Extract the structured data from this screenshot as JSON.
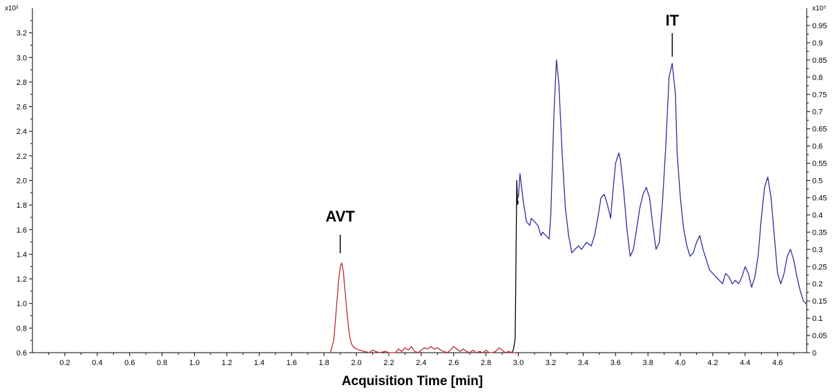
{
  "chart_data": {
    "type": "line",
    "title": "",
    "xlabel": "Acquisition Time [min]",
    "xlim": [
      0,
      4.78
    ],
    "x_ticks": [
      "0.2",
      "0.4",
      "0.6",
      "0.8",
      "1.0",
      "1.2",
      "1.4",
      "1.6",
      "1.8",
      "2.0",
      "2.2",
      "2.4",
      "2.6",
      "2.8",
      "3.0",
      "3.2",
      "3.4",
      "3.6",
      "3.8",
      "4.0",
      "4.2",
      "4.4",
      "4.6"
    ],
    "y_left": {
      "multiplier_label": "x10²",
      "ylim": [
        0.6,
        3.4
      ],
      "ticks": [
        "0.6",
        "0.8",
        "1.0",
        "1.2",
        "1.4",
        "1.6",
        "1.8",
        "2.0",
        "2.2",
        "2.4",
        "2.6",
        "2.8",
        "3.0",
        "3.2"
      ]
    },
    "y_right": {
      "multiplier_label": "x10⁵",
      "ylim": [
        0,
        1.0
      ],
      "ticks": [
        "0",
        "0.05",
        "0.1",
        "0.15",
        "0.2",
        "0.25",
        "0.3",
        "0.35",
        "0.4",
        "0.45",
        "0.5",
        "0.55",
        "0.6",
        "0.65",
        "0.7",
        "0.75",
        "0.8",
        "0.85",
        "0.9",
        "0.95"
      ]
    },
    "annotations": [
      {
        "text": "AVT",
        "x": 1.9
      },
      {
        "text": "IT",
        "x": 3.95
      }
    ],
    "series": [
      {
        "color": "#c0272d",
        "axis": "left",
        "x": [
          1.84,
          1.86,
          1.87,
          1.88,
          1.89,
          1.9,
          1.91,
          1.92,
          1.93,
          1.94,
          1.95,
          1.96,
          1.97,
          1.98,
          2.0,
          2.02,
          2.05,
          2.08,
          2.1,
          2.14,
          2.18,
          2.2,
          2.24,
          2.26,
          2.28,
          2.3,
          2.32,
          2.34,
          2.36,
          2.38,
          2.4,
          2.42,
          2.44,
          2.46,
          2.48,
          2.5,
          2.52,
          2.54,
          2.56,
          2.58,
          2.6,
          2.62,
          2.64,
          2.66,
          2.68,
          2.7,
          2.72,
          2.74,
          2.76,
          2.78,
          2.8,
          2.82,
          2.84,
          2.86,
          2.88,
          2.9,
          2.92,
          2.94,
          2.96,
          2.98
        ],
        "values": [
          0.6,
          0.7,
          0.86,
          1.02,
          1.18,
          1.3,
          1.33,
          1.25,
          1.1,
          0.95,
          0.82,
          0.72,
          0.67,
          0.65,
          0.63,
          0.62,
          0.61,
          0.6,
          0.62,
          0.6,
          0.61,
          0.6,
          0.6,
          0.63,
          0.61,
          0.64,
          0.62,
          0.65,
          0.61,
          0.6,
          0.62,
          0.64,
          0.63,
          0.65,
          0.63,
          0.64,
          0.62,
          0.61,
          0.6,
          0.62,
          0.65,
          0.63,
          0.61,
          0.63,
          0.61,
          0.6,
          0.62,
          0.6,
          0.61,
          0.6,
          0.62,
          0.6,
          0.6,
          0.61,
          0.64,
          0.62,
          0.6,
          0.61,
          0.6,
          0.6
        ]
      },
      {
        "color": "#000000",
        "axis": "right",
        "x": [
          2.96,
          2.97,
          2.98,
          2.985,
          2.99,
          2.995,
          3.0
        ],
        "values": [
          0.0,
          0.01,
          0.04,
          0.25,
          0.5,
          0.43,
          0.44
        ]
      },
      {
        "color": "#2c2c9e",
        "axis": "right",
        "x": [
          3.0,
          3.01,
          3.02,
          3.03,
          3.05,
          3.07,
          3.08,
          3.1,
          3.12,
          3.14,
          3.15,
          3.17,
          3.19,
          3.2,
          3.22,
          3.235,
          3.25,
          3.27,
          3.29,
          3.31,
          3.33,
          3.35,
          3.37,
          3.39,
          3.42,
          3.45,
          3.47,
          3.49,
          3.51,
          3.53,
          3.55,
          3.57,
          3.58,
          3.6,
          3.62,
          3.63,
          3.65,
          3.67,
          3.69,
          3.71,
          3.73,
          3.75,
          3.77,
          3.79,
          3.81,
          3.83,
          3.85,
          3.87,
          3.89,
          3.91,
          3.93,
          3.95,
          3.97,
          3.98,
          4.0,
          4.02,
          4.04,
          4.06,
          4.08,
          4.1,
          4.12,
          4.14,
          4.16,
          4.18,
          4.2,
          4.22,
          4.24,
          4.26,
          4.28,
          4.3,
          4.32,
          4.34,
          4.36,
          4.38,
          4.4,
          4.42,
          4.44,
          4.46,
          4.48,
          4.5,
          4.52,
          4.54,
          4.56,
          4.58,
          4.6,
          4.62,
          4.64,
          4.66,
          4.68,
          4.7,
          4.72,
          4.74,
          4.76,
          4.78
        ],
        "values": [
          0.45,
          0.52,
          0.48,
          0.44,
          0.38,
          0.37,
          0.39,
          0.38,
          0.37,
          0.34,
          0.35,
          0.34,
          0.33,
          0.4,
          0.7,
          0.85,
          0.78,
          0.58,
          0.42,
          0.34,
          0.29,
          0.3,
          0.31,
          0.3,
          0.32,
          0.31,
          0.34,
          0.39,
          0.45,
          0.46,
          0.43,
          0.39,
          0.45,
          0.55,
          0.58,
          0.56,
          0.47,
          0.36,
          0.28,
          0.3,
          0.36,
          0.42,
          0.46,
          0.48,
          0.45,
          0.37,
          0.3,
          0.32,
          0.44,
          0.6,
          0.8,
          0.84,
          0.75,
          0.58,
          0.45,
          0.36,
          0.31,
          0.28,
          0.29,
          0.32,
          0.34,
          0.3,
          0.27,
          0.24,
          0.23,
          0.22,
          0.21,
          0.2,
          0.23,
          0.22,
          0.2,
          0.21,
          0.2,
          0.22,
          0.25,
          0.23,
          0.19,
          0.22,
          0.28,
          0.39,
          0.48,
          0.51,
          0.45,
          0.34,
          0.23,
          0.2,
          0.23,
          0.28,
          0.3,
          0.27,
          0.22,
          0.18,
          0.15,
          0.14
        ]
      }
    ],
    "colors": {
      "axis": "#000000",
      "avt": "#c0272d",
      "it": "#2c2c9e"
    }
  }
}
